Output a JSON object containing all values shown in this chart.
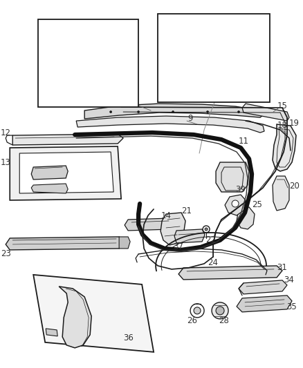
{
  "bg_color": "#ffffff",
  "line_color": "#1a1a1a",
  "label_color": "#333333",
  "label_fs": 8.5,
  "fig_w": 4.38,
  "fig_h": 5.33,
  "dpi": 100
}
